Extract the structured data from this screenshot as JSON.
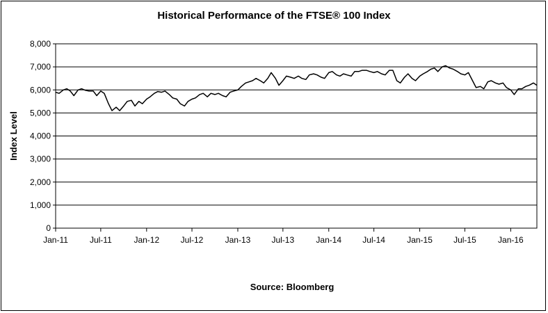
{
  "chart_data": {
    "type": "line",
    "title": "Historical Performance of the FTSE® 100 Index",
    "ylabel": "Index Level",
    "xlabel": "",
    "source": "Source: Bloomberg",
    "ylim": [
      0,
      8000
    ],
    "yticks": [
      0,
      1000,
      2000,
      3000,
      4000,
      5000,
      6000,
      7000,
      8000
    ],
    "ytick_labels": [
      "0",
      "1,000",
      "2,000",
      "3,000",
      "4,000",
      "5,000",
      "6,000",
      "7,000",
      "8,000"
    ],
    "xlim": [
      "2011-01-01",
      "2016-04-15"
    ],
    "xticks": [
      "2011-01-01",
      "2011-07-01",
      "2012-01-01",
      "2012-07-01",
      "2013-01-01",
      "2013-07-01",
      "2014-01-01",
      "2014-07-01",
      "2015-01-01",
      "2015-07-01",
      "2016-01-01"
    ],
    "xtick_labels": [
      "Jan-11",
      "Jul-11",
      "Jan-12",
      "Jul-12",
      "Jan-13",
      "Jul-13",
      "Jan-14",
      "Jul-14",
      "Jan-15",
      "Jul-15",
      "Jan-16"
    ],
    "grid": true,
    "series": [
      {
        "name": "",
        "color": "#000000",
        "x": [
          "2011-01-01",
          "2011-01-15",
          "2011-02-01",
          "2011-02-15",
          "2011-03-01",
          "2011-03-15",
          "2011-04-01",
          "2011-04-15",
          "2011-05-01",
          "2011-05-15",
          "2011-06-01",
          "2011-06-15",
          "2011-07-01",
          "2011-07-15",
          "2011-08-01",
          "2011-08-15",
          "2011-09-01",
          "2011-09-15",
          "2011-10-01",
          "2011-10-15",
          "2011-11-01",
          "2011-11-15",
          "2011-12-01",
          "2011-12-15",
          "2012-01-01",
          "2012-01-15",
          "2012-02-01",
          "2012-02-15",
          "2012-03-01",
          "2012-03-15",
          "2012-04-01",
          "2012-04-15",
          "2012-05-01",
          "2012-05-15",
          "2012-06-01",
          "2012-06-15",
          "2012-07-01",
          "2012-07-15",
          "2012-08-01",
          "2012-08-15",
          "2012-09-01",
          "2012-09-15",
          "2012-10-01",
          "2012-10-15",
          "2012-11-01",
          "2012-11-15",
          "2012-12-01",
          "2012-12-15",
          "2013-01-01",
          "2013-01-15",
          "2013-02-01",
          "2013-02-15",
          "2013-03-01",
          "2013-03-15",
          "2013-04-01",
          "2013-04-15",
          "2013-05-01",
          "2013-05-15",
          "2013-06-01",
          "2013-06-15",
          "2013-07-01",
          "2013-07-15",
          "2013-08-01",
          "2013-08-15",
          "2013-09-01",
          "2013-09-15",
          "2013-10-01",
          "2013-10-15",
          "2013-11-01",
          "2013-11-15",
          "2013-12-01",
          "2013-12-15",
          "2014-01-01",
          "2014-01-15",
          "2014-02-01",
          "2014-02-15",
          "2014-03-01",
          "2014-03-15",
          "2014-04-01",
          "2014-04-15",
          "2014-05-01",
          "2014-05-15",
          "2014-06-01",
          "2014-06-15",
          "2014-07-01",
          "2014-07-15",
          "2014-08-01",
          "2014-08-15",
          "2014-09-01",
          "2014-09-15",
          "2014-10-01",
          "2014-10-15",
          "2014-11-01",
          "2014-11-15",
          "2014-12-01",
          "2014-12-15",
          "2015-01-01",
          "2015-01-15",
          "2015-02-01",
          "2015-02-15",
          "2015-03-01",
          "2015-03-15",
          "2015-04-01",
          "2015-04-15",
          "2015-05-01",
          "2015-05-15",
          "2015-06-01",
          "2015-06-15",
          "2015-07-01",
          "2015-07-15",
          "2015-08-01",
          "2015-08-15",
          "2015-09-01",
          "2015-09-15",
          "2015-10-01",
          "2015-10-15",
          "2015-11-01",
          "2015-11-15",
          "2015-12-01",
          "2015-12-15",
          "2016-01-01",
          "2016-01-15",
          "2016-02-01",
          "2016-02-15",
          "2016-03-01",
          "2016-03-15",
          "2016-04-01",
          "2016-04-15"
        ],
        "values": [
          5900,
          5850,
          6000,
          6050,
          5950,
          5750,
          6000,
          6050,
          5980,
          5950,
          5950,
          5750,
          5950,
          5850,
          5400,
          5100,
          5250,
          5100,
          5300,
          5500,
          5550,
          5300,
          5500,
          5400,
          5600,
          5700,
          5850,
          5930,
          5900,
          5950,
          5800,
          5650,
          5600,
          5400,
          5300,
          5500,
          5600,
          5650,
          5800,
          5850,
          5700,
          5850,
          5800,
          5850,
          5750,
          5700,
          5900,
          5950,
          6000,
          6150,
          6300,
          6350,
          6400,
          6500,
          6400,
          6300,
          6500,
          6750,
          6500,
          6200,
          6400,
          6600,
          6550,
          6500,
          6600,
          6500,
          6450,
          6650,
          6700,
          6650,
          6550,
          6500,
          6750,
          6800,
          6650,
          6600,
          6700,
          6650,
          6600,
          6800,
          6800,
          6850,
          6850,
          6800,
          6750,
          6800,
          6700,
          6650,
          6850,
          6850,
          6400,
          6300,
          6550,
          6700,
          6500,
          6400,
          6600,
          6700,
          6800,
          6900,
          6950,
          6800,
          7000,
          7050,
          6950,
          6900,
          6800,
          6700,
          6650,
          6750,
          6400,
          6100,
          6150,
          6050,
          6350,
          6400,
          6300,
          6250,
          6300,
          6100,
          6000,
          5800,
          6050,
          6050,
          6150,
          6200,
          6300,
          6200
        ]
      }
    ]
  }
}
